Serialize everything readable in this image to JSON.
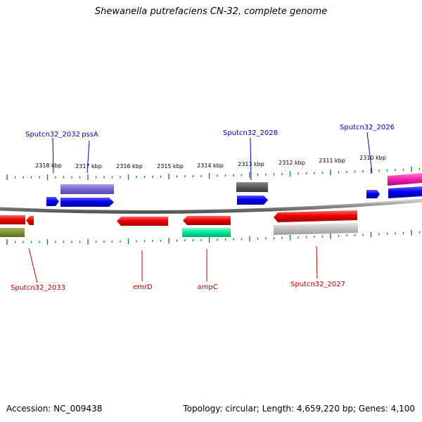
{
  "title": "Shewanella putrefaciens CN-32, complete genome",
  "footer": {
    "accession": "Accession: NC_009438",
    "summary": "Topology: circular; Length: 4,659,220 bp; Genes: 4,100"
  },
  "colors": {
    "forward_label": "#0000c0",
    "reverse_label": "#c00000",
    "backbone": "#8a8a8a",
    "ticks": "#1a8a1a"
  },
  "ruler": [
    {
      "label": "2318 kbp"
    },
    {
      "label": "2317 kbp"
    },
    {
      "label": "2316 kbp"
    },
    {
      "label": "2315 kbp"
    },
    {
      "label": "2314 kbp"
    },
    {
      "label": "2313 kbp"
    },
    {
      "label": "2312 kbp"
    },
    {
      "label": "2311 kbp"
    },
    {
      "label": "2310 kbp"
    }
  ],
  "forward_labels": [
    {
      "text": "Sputcn32_2032"
    },
    {
      "text": "pssA"
    },
    {
      "text": "Sputcn32_2028"
    },
    {
      "text": "Sputcn32_2026"
    }
  ],
  "reverse_labels": [
    {
      "text": "Sputcn32_2033"
    },
    {
      "text": "emrD"
    },
    {
      "text": "ampC"
    },
    {
      "text": "Sputcn32_2027"
    }
  ]
}
